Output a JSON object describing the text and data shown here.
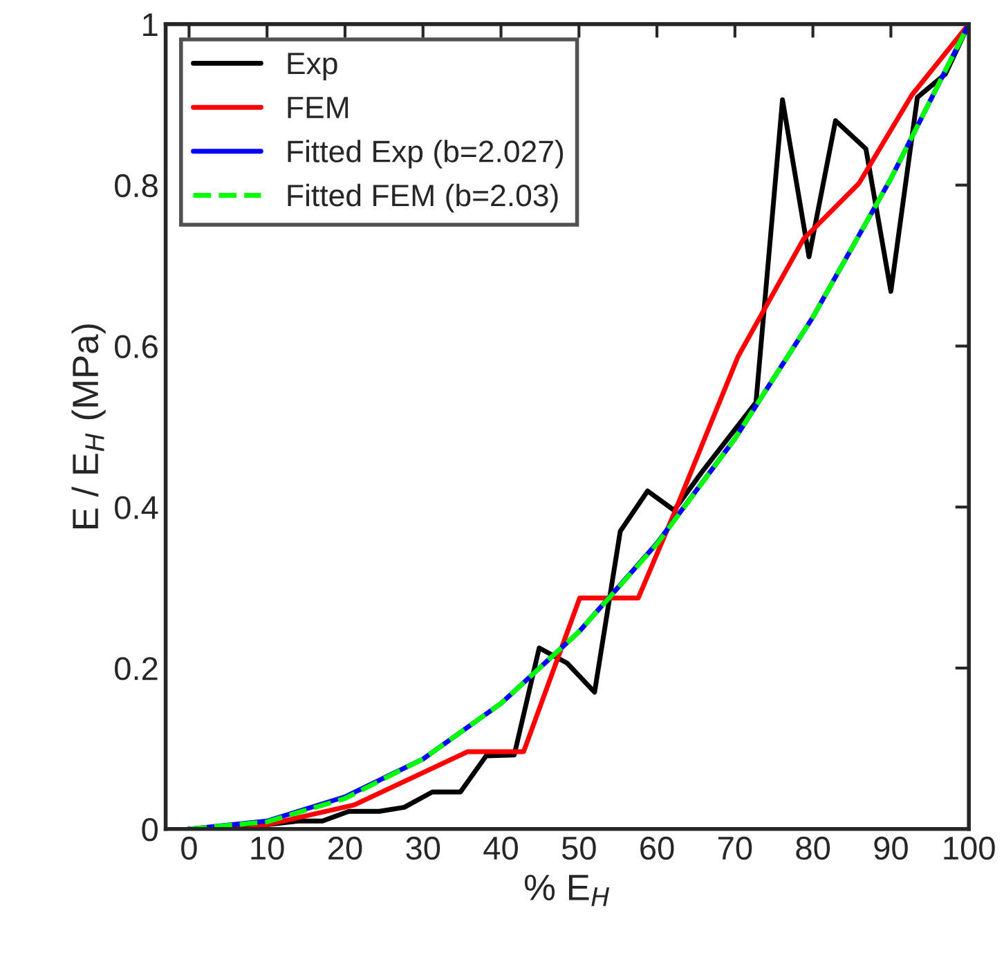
{
  "chart_data": {
    "type": "line",
    "xlabel": "% E$_{H}$",
    "ylabel": "E / E$_{H}$ (MPa)",
    "xlim": [
      -3,
      100
    ],
    "ylim": [
      0,
      1
    ],
    "xticks": [
      0,
      10,
      20,
      30,
      40,
      50,
      60,
      70,
      80,
      90,
      100
    ],
    "yticks": [
      0,
      0.2,
      0.4,
      0.6,
      0.8,
      1
    ],
    "legend": "top left",
    "grid": false,
    "series": [
      {
        "name": "Exp",
        "color": "#000000",
        "line_style": "solid",
        "x": [
          0,
          7,
          14,
          17.1,
          20.5,
          24.4,
          27.6,
          31.2,
          34.8,
          38.1,
          41.7,
          44.9,
          48.5,
          52,
          55.3,
          58.8,
          62.2,
          65.8,
          72.7,
          76.1,
          79.5,
          82.9,
          86.8,
          90.0,
          93.4,
          97.0,
          100
        ],
        "values": [
          0,
          0.002,
          0.01,
          0.01,
          0.022,
          0.022,
          0.027,
          0.046,
          0.046,
          0.091,
          0.092,
          0.225,
          0.206,
          0.17,
          0.37,
          0.42,
          0.396,
          0.444,
          0.53,
          0.906,
          0.711,
          0.88,
          0.845,
          0.668,
          0.909,
          0.938,
          1
        ]
      },
      {
        "name": "FEM",
        "color": "#ff0000",
        "line_style": "solid",
        "x": [
          0,
          7.5,
          21.2,
          35.7,
          42.9,
          50.1,
          57.6,
          62.2,
          70.4,
          78.8,
          85.9,
          92.7,
          100
        ],
        "values": [
          0,
          0,
          0.03,
          0.096,
          0.096,
          0.287,
          0.287,
          0.392,
          0.587,
          0.733,
          0.802,
          0.912,
          1
        ]
      },
      {
        "name": "Fitted Exp (b=2.027)",
        "color": "#0000ff",
        "line_style": "solid",
        "x": [
          0,
          10,
          20,
          30,
          40,
          50,
          60,
          70,
          80,
          90,
          100
        ],
        "values": [
          0,
          0.01,
          0.04,
          0.087,
          0.156,
          0.245,
          0.355,
          0.485,
          0.636,
          0.808,
          1
        ]
      },
      {
        "name": "Fitted FEM (b=2.03)",
        "color": "#00ff00",
        "line_style": "dashed",
        "x": [
          0,
          10,
          20,
          30,
          40,
          50,
          60,
          70,
          80,
          90,
          100
        ],
        "values": [
          0,
          0.009,
          0.038,
          0.087,
          0.156,
          0.245,
          0.354,
          0.485,
          0.636,
          0.808,
          1
        ]
      }
    ]
  }
}
